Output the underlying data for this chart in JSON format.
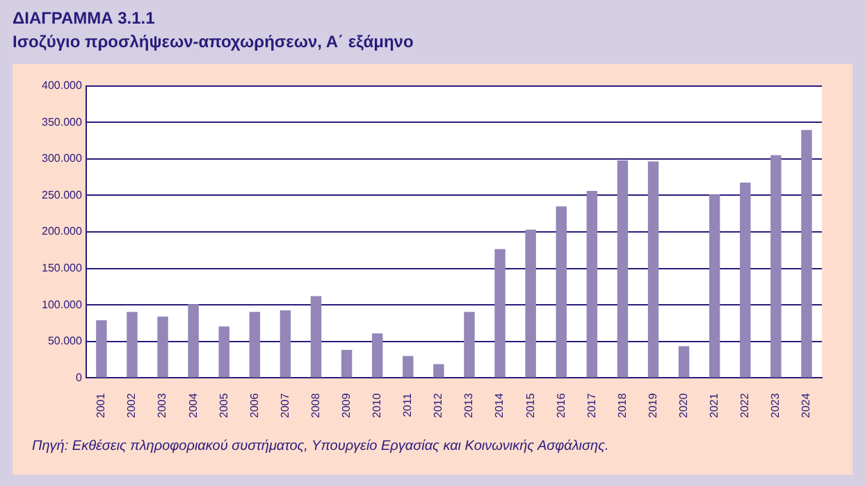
{
  "chart_data": {
    "type": "bar",
    "title": "ΔΙΑΓΡΑΜΜΑ 3.1.1",
    "subtitle": "Ισοζύγιο προσλήψεων-αποχωρήσεων, Α΄ εξάμηνο",
    "categories": [
      "2001",
      "2002",
      "2003",
      "2004",
      "2005",
      "2006",
      "2007",
      "2008",
      "2009",
      "2010",
      "2011",
      "2012",
      "2013",
      "2014",
      "2015",
      "2016",
      "2017",
      "2018",
      "2019",
      "2020",
      "2021",
      "2022",
      "2023",
      "2024"
    ],
    "values": [
      79000,
      90500,
      84000,
      101000,
      70500,
      90500,
      92500,
      112000,
      38500,
      61000,
      30000,
      19000,
      90500,
      176500,
      203000,
      235000,
      256000,
      298000,
      296500,
      43500,
      251000,
      267500,
      305000,
      339500
    ],
    "color": "#9486b8",
    "ylim": [
      0,
      400000
    ],
    "yticks": [
      {
        "value": 0,
        "label": "0"
      },
      {
        "value": 50000,
        "label": "50.000"
      },
      {
        "value": 100000,
        "label": "100.000"
      },
      {
        "value": 150000,
        "label": "150.000"
      },
      {
        "value": 200000,
        "label": "200.000"
      },
      {
        "value": 250000,
        "label": "250.000"
      },
      {
        "value": 300000,
        "label": "300.000"
      },
      {
        "value": 350000,
        "label": "350.000"
      },
      {
        "value": 400000,
        "label": "400.000"
      }
    ],
    "grid": "y",
    "legend": false,
    "annotations": [
      "Πηγή: Εκθέσεις πληροφοριακού συστήματος, Υπουργείο Εργασίας και Κοινωνικής Ασφάλισης."
    ]
  }
}
